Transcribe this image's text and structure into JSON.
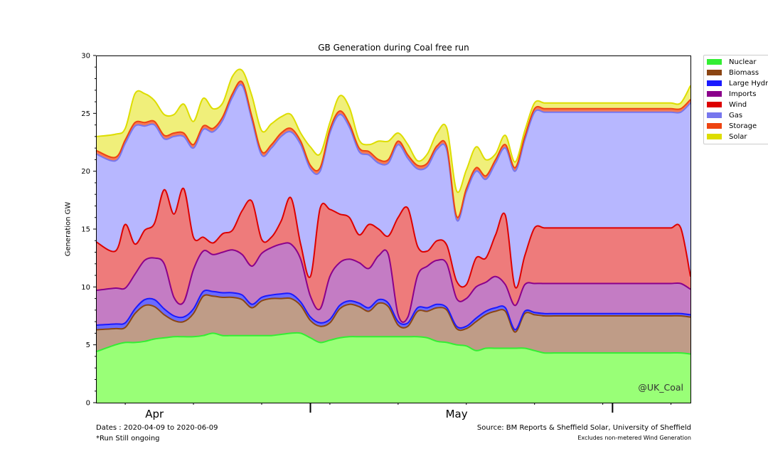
{
  "chart_data": {
    "type": "area",
    "stacked": true,
    "title": "GB Generation during Coal free run",
    "ylabel": "Generation GW",
    "xlabel": "",
    "ylim": [
      0,
      30
    ],
    "yticks": [
      0,
      5,
      10,
      15,
      20,
      25,
      30
    ],
    "date_range": [
      "2020-04-09",
      "2020-06-09"
    ],
    "month_labels": [
      "Apr",
      "May"
    ],
    "grid": false,
    "legend_position": "outside-top-right",
    "x_day": [
      0,
      2,
      3,
      4,
      5,
      6,
      7,
      8,
      9,
      10,
      11,
      12,
      13,
      14,
      15,
      16,
      17,
      18,
      19,
      20,
      21,
      22,
      23,
      24,
      25,
      26,
      27,
      28,
      29,
      30,
      31,
      32,
      33,
      34,
      35,
      36,
      37,
      38,
      39,
      40,
      41,
      42,
      43,
      44,
      45,
      46,
      47,
      48,
      49,
      50,
      51,
      52,
      53,
      54,
      55,
      56,
      57,
      58,
      59,
      60,
      61
    ],
    "series": [
      {
        "name": "Nuclear",
        "color": "#33ee33",
        "fill": "#99ff77",
        "values": [
          4.4,
          5.0,
          5.2,
          5.2,
          5.3,
          5.5,
          5.6,
          5.7,
          5.7,
          5.7,
          5.8,
          6.0,
          5.8,
          5.8,
          5.8,
          5.8,
          5.8,
          5.8,
          5.9,
          6.0,
          6.0,
          5.6,
          5.2,
          5.4,
          5.6,
          5.7,
          5.7,
          5.7,
          5.7,
          5.7,
          5.7,
          5.7,
          5.7,
          5.6,
          5.3,
          5.2,
          5.0,
          4.9,
          4.5,
          4.7,
          4.7,
          4.7,
          4.7,
          4.7,
          4.5,
          4.3,
          4.3,
          4.3,
          4.3,
          4.3,
          4.3,
          4.3,
          4.3,
          4.3,
          4.3,
          4.3,
          4.3,
          4.3,
          4.3,
          4.3,
          4.2
        ]
      },
      {
        "name": "Biomass",
        "color": "#8b4513",
        "fill": "#bf9c87",
        "values": [
          1.9,
          1.4,
          1.3,
          2.5,
          3.1,
          2.8,
          2.0,
          1.4,
          1.3,
          2.0,
          3.4,
          3.2,
          3.3,
          3.3,
          3.1,
          2.4,
          3.0,
          3.2,
          3.1,
          3.0,
          2.4,
          1.5,
          1.4,
          1.5,
          2.5,
          2.8,
          2.6,
          2.2,
          2.9,
          2.6,
          1.0,
          0.9,
          2.2,
          2.3,
          2.9,
          2.8,
          1.4,
          1.5,
          2.5,
          2.9,
          3.2,
          3.2,
          1.4,
          3.0,
          3.1,
          3.2,
          3.2,
          3.2,
          3.2,
          3.2,
          3.2,
          3.2,
          3.2,
          3.2,
          3.2,
          3.2,
          3.2,
          3.2,
          3.2,
          3.2,
          3.2
        ]
      },
      {
        "name": "Large Hydro",
        "color": "#1a1aff",
        "fill": "#6b6bff",
        "values": [
          0.4,
          0.4,
          0.4,
          0.4,
          0.5,
          0.6,
          0.5,
          0.4,
          0.4,
          0.4,
          0.4,
          0.4,
          0.4,
          0.4,
          0.4,
          0.3,
          0.3,
          0.3,
          0.4,
          0.4,
          0.3,
          0.3,
          0.3,
          0.3,
          0.3,
          0.3,
          0.3,
          0.3,
          0.3,
          0.3,
          0.3,
          0.3,
          0.3,
          0.3,
          0.3,
          0.2,
          0.2,
          0.2,
          0.3,
          0.3,
          0.3,
          0.3,
          0.2,
          0.2,
          0.2,
          0.2,
          0.2,
          0.2,
          0.2,
          0.2,
          0.2,
          0.2,
          0.2,
          0.2,
          0.2,
          0.2,
          0.2,
          0.2,
          0.2,
          0.2,
          0.2
        ]
      },
      {
        "name": "Imports",
        "color": "#8b008b",
        "fill": "#c47cc4",
        "values": [
          3.0,
          3.1,
          3.0,
          3.0,
          3.4,
          3.6,
          3.9,
          1.6,
          1.3,
          3.4,
          3.5,
          3.2,
          3.5,
          3.7,
          3.5,
          3.3,
          3.8,
          4.1,
          4.3,
          4.3,
          3.7,
          1.8,
          1.2,
          3.7,
          3.7,
          3.6,
          3.5,
          3.4,
          3.8,
          4.2,
          0.6,
          0.5,
          2.8,
          3.6,
          3.8,
          3.8,
          2.4,
          2.4,
          2.7,
          2.5,
          2.7,
          2.0,
          2.1,
          2.3,
          2.5,
          2.6,
          2.6,
          2.6,
          2.6,
          2.6,
          2.6,
          2.6,
          2.6,
          2.6,
          2.6,
          2.6,
          2.6,
          2.6,
          2.6,
          2.6,
          2.2
        ]
      },
      {
        "name": "Wind",
        "color": "#dd0000",
        "fill": "#ee7b7b",
        "values": [
          4.2,
          3.2,
          5.5,
          2.6,
          2.6,
          3.0,
          6.4,
          7.2,
          9.8,
          2.8,
          1.2,
          1.0,
          1.6,
          1.7,
          3.8,
          5.6,
          1.2,
          0.9,
          2.0,
          4.0,
          1.3,
          1.7,
          8.7,
          5.8,
          4.2,
          3.6,
          2.4,
          3.8,
          2.3,
          1.6,
          8.4,
          9.4,
          2.5,
          1.3,
          1.7,
          1.6,
          1.5,
          1.2,
          2.5,
          2.1,
          3.6,
          6.0,
          1.6,
          2.5,
          4.8,
          4.8,
          4.8,
          4.8,
          4.8,
          4.8,
          4.8,
          4.8,
          4.8,
          4.8,
          4.8,
          4.8,
          4.8,
          4.8,
          4.8,
          4.8,
          1.1
        ]
      },
      {
        "name": "Gas",
        "color": "#7777ee",
        "fill": "#b7b7ff",
        "values": [
          7.6,
          7.8,
          7.0,
          10.2,
          9.0,
          8.5,
          4.4,
          6.7,
          4.5,
          7.7,
          9.3,
          9.6,
          9.8,
          11.5,
          10.8,
          7.0,
          7.3,
          7.7,
          7.3,
          5.7,
          8.6,
          9.3,
          3.2,
          6.6,
          8.6,
          7.8,
          7.2,
          6.0,
          5.7,
          6.3,
          6.3,
          4.3,
          6.7,
          7.3,
          7.9,
          8.2,
          5.3,
          8.0,
          7.5,
          6.8,
          6.2,
          5.8,
          10.0,
          10.0,
          10.0,
          10.0,
          10.0,
          10.0,
          10.0,
          10.0,
          10.0,
          10.0,
          10.0,
          10.0,
          10.0,
          10.0,
          10.0,
          10.0,
          10.0,
          10.0,
          15.0
        ]
      },
      {
        "name": "Storage",
        "color": "#ee4411",
        "fill": "#f37a55",
        "values": [
          0.3,
          0.3,
          0.3,
          0.3,
          0.3,
          0.3,
          0.3,
          0.3,
          0.3,
          0.3,
          0.3,
          0.3,
          0.3,
          0.3,
          0.3,
          0.3,
          0.3,
          0.3,
          0.3,
          0.3,
          0.3,
          0.3,
          0.3,
          0.3,
          0.3,
          0.3,
          0.3,
          0.3,
          0.3,
          0.3,
          0.3,
          0.3,
          0.3,
          0.3,
          0.3,
          0.3,
          0.3,
          0.3,
          0.3,
          0.3,
          0.3,
          0.3,
          0.3,
          0.3,
          0.3,
          0.3,
          0.3,
          0.3,
          0.3,
          0.3,
          0.3,
          0.3,
          0.3,
          0.3,
          0.3,
          0.3,
          0.3,
          0.3,
          0.3,
          0.3,
          0.3
        ]
      },
      {
        "name": "Solar",
        "color": "#dddd00",
        "fill": "#f0ef7a",
        "values": [
          1.2,
          2.0,
          1.0,
          2.5,
          2.5,
          1.8,
          1.8,
          1.6,
          2.5,
          2.0,
          2.4,
          1.7,
          1.2,
          1.5,
          1.0,
          1.8,
          1.8,
          1.8,
          1.4,
          1.2,
          0.7,
          1.6,
          1.2,
          0.6,
          1.3,
          1.4,
          0.7,
          0.6,
          1.6,
          1.6,
          0.7,
          0.9,
          0.4,
          0.8,
          1.1,
          1.6,
          2.2,
          1.6,
          1.8,
          1.4,
          0.5,
          0.8,
          0.5,
          0.5,
          0.5,
          0.5,
          0.5,
          0.5,
          0.5,
          0.5,
          0.5,
          0.5,
          0.5,
          0.5,
          0.5,
          0.5,
          0.5,
          0.5,
          0.5,
          0.5,
          1.2
        ]
      }
    ]
  },
  "footer": {
    "dates": "Dates : 2020-04-09 to 2020-06-09",
    "run_note": "*Run Still ongoing",
    "source": "Source: BM Reports & Sheffield Solar, University of Sheffield",
    "excludes": "Excludes non-metered Wind Generation"
  },
  "watermark": "@UK_Coal"
}
